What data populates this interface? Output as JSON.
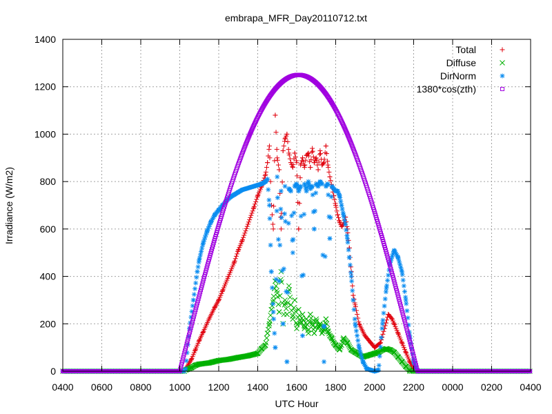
{
  "chart_data": {
    "type": "scatter",
    "title": "embrapa_MFR_Day20110712.txt",
    "xlabel": "UTC Hour",
    "ylabel": "Irradiance (W/m2)",
    "ylim": [
      0,
      1400
    ],
    "xlim": [
      4,
      28
    ],
    "x_ticks": [
      "0400",
      "0600",
      "0800",
      "1000",
      "1200",
      "1400",
      "1600",
      "1800",
      "2000",
      "2200",
      "0000",
      "0200",
      "0400"
    ],
    "y_ticks": [
      "0",
      "200",
      "400",
      "600",
      "800",
      "1000",
      "1200",
      "1400"
    ],
    "grid": true,
    "legend_position": "top-right",
    "series": [
      {
        "name": "Total",
        "marker": "plus",
        "color": "#e0000c",
        "points": [
          [
            10.3,
            10
          ],
          [
            10.6,
            50
          ],
          [
            10.8,
            90
          ],
          [
            11.0,
            130
          ],
          [
            11.2,
            165
          ],
          [
            11.5,
            220
          ],
          [
            11.8,
            270
          ],
          [
            12.0,
            300
          ],
          [
            12.2,
            340
          ],
          [
            12.5,
            400
          ],
          [
            12.8,
            460
          ],
          [
            13.0,
            510
          ],
          [
            13.2,
            550
          ],
          [
            13.5,
            620
          ],
          [
            13.8,
            690
          ],
          [
            14.0,
            740
          ],
          [
            14.2,
            780
          ],
          [
            14.4,
            830
          ],
          [
            14.5,
            880
          ],
          [
            14.6,
            950
          ],
          [
            14.7,
            700
          ],
          [
            14.8,
            600
          ],
          [
            14.9,
            1080
          ],
          [
            15.0,
            900
          ],
          [
            15.1,
            850
          ],
          [
            15.2,
            600
          ],
          [
            15.3,
            930
          ],
          [
            15.4,
            980
          ],
          [
            15.5,
            1000
          ],
          [
            15.6,
            920
          ],
          [
            15.7,
            880
          ],
          [
            15.8,
            860
          ],
          [
            15.9,
            920
          ],
          [
            16.0,
            880
          ],
          [
            16.1,
            600
          ],
          [
            16.2,
            870
          ],
          [
            16.3,
            900
          ],
          [
            16.4,
            860
          ],
          [
            16.5,
            910
          ],
          [
            16.6,
            920
          ],
          [
            16.7,
            860
          ],
          [
            16.8,
            940
          ],
          [
            16.9,
            880
          ],
          [
            17.0,
            900
          ],
          [
            17.1,
            850
          ],
          [
            17.2,
            930
          ],
          [
            17.3,
            870
          ],
          [
            17.4,
            880
          ],
          [
            17.5,
            950
          ],
          [
            17.6,
            870
          ],
          [
            17.7,
            820
          ],
          [
            17.8,
            780
          ],
          [
            17.9,
            740
          ],
          [
            18.0,
            700
          ],
          [
            18.1,
            660
          ],
          [
            18.2,
            630
          ],
          [
            18.3,
            610
          ],
          [
            18.4,
            620
          ],
          [
            18.5,
            650
          ],
          [
            18.6,
            600
          ],
          [
            18.7,
            520
          ],
          [
            18.8,
            420
          ],
          [
            18.9,
            320
          ],
          [
            19.0,
            280
          ],
          [
            19.2,
            200
          ],
          [
            19.5,
            150
          ],
          [
            19.8,
            120
          ],
          [
            20.0,
            100
          ],
          [
            20.3,
            120
          ],
          [
            20.5,
            180
          ],
          [
            20.7,
            240
          ],
          [
            20.9,
            220
          ],
          [
            21.0,
            200
          ],
          [
            21.2,
            160
          ],
          [
            21.4,
            120
          ],
          [
            21.6,
            80
          ],
          [
            21.8,
            40
          ],
          [
            22.0,
            10
          ],
          [
            22.2,
            0
          ]
        ]
      },
      {
        "name": "Diffuse",
        "marker": "cross",
        "color": "#00b000",
        "points": [
          [
            10.3,
            5
          ],
          [
            10.6,
            15
          ],
          [
            10.8,
            25
          ],
          [
            11.0,
            30
          ],
          [
            11.5,
            35
          ],
          [
            12.0,
            45
          ],
          [
            12.5,
            50
          ],
          [
            13.0,
            58
          ],
          [
            13.5,
            65
          ],
          [
            14.0,
            75
          ],
          [
            14.2,
            95
          ],
          [
            14.4,
            110
          ],
          [
            14.5,
            160
          ],
          [
            14.6,
            200
          ],
          [
            14.7,
            260
          ],
          [
            14.8,
            300
          ],
          [
            14.9,
            380
          ],
          [
            15.0,
            330
          ],
          [
            15.1,
            250
          ],
          [
            15.2,
            420
          ],
          [
            15.3,
            200
          ],
          [
            15.4,
            300
          ],
          [
            15.5,
            240
          ],
          [
            15.6,
            360
          ],
          [
            15.7,
            280
          ],
          [
            15.8,
            220
          ],
          [
            15.9,
            300
          ],
          [
            16.0,
            180
          ],
          [
            16.1,
            260
          ],
          [
            16.2,
            200
          ],
          [
            16.3,
            240
          ],
          [
            16.4,
            180
          ],
          [
            16.5,
            220
          ],
          [
            16.6,
            160
          ],
          [
            16.7,
            240
          ],
          [
            16.8,
            200
          ],
          [
            16.9,
            160
          ],
          [
            17.0,
            220
          ],
          [
            17.1,
            180
          ],
          [
            17.2,
            200
          ],
          [
            17.3,
            160
          ],
          [
            17.4,
            180
          ],
          [
            17.5,
            220
          ],
          [
            17.6,
            170
          ],
          [
            17.7,
            150
          ],
          [
            17.8,
            140
          ],
          [
            17.9,
            120
          ],
          [
            18.0,
            110
          ],
          [
            18.1,
            100
          ],
          [
            18.2,
            90
          ],
          [
            18.3,
            110
          ],
          [
            18.4,
            140
          ],
          [
            18.6,
            120
          ],
          [
            18.8,
            90
          ],
          [
            19.0,
            80
          ],
          [
            19.2,
            70
          ],
          [
            19.4,
            60
          ],
          [
            19.6,
            65
          ],
          [
            19.8,
            70
          ],
          [
            20.0,
            75
          ],
          [
            20.2,
            80
          ],
          [
            20.4,
            90
          ],
          [
            20.6,
            95
          ],
          [
            20.8,
            90
          ],
          [
            21.0,
            80
          ],
          [
            21.2,
            60
          ],
          [
            21.4,
            40
          ],
          [
            21.6,
            20
          ],
          [
            21.8,
            5
          ]
        ]
      },
      {
        "name": "DirNorm",
        "marker": "star",
        "color": "#0a8cf0",
        "points": [
          [
            10.3,
            10
          ],
          [
            10.5,
            180
          ],
          [
            10.7,
            300
          ],
          [
            10.9,
            420
          ],
          [
            11.0,
            470
          ],
          [
            11.2,
            540
          ],
          [
            11.4,
            590
          ],
          [
            11.6,
            630
          ],
          [
            11.8,
            660
          ],
          [
            12.0,
            680
          ],
          [
            12.2,
            700
          ],
          [
            12.4,
            720
          ],
          [
            12.6,
            735
          ],
          [
            12.8,
            745
          ],
          [
            13.0,
            755
          ],
          [
            13.2,
            765
          ],
          [
            13.4,
            770
          ],
          [
            13.6,
            775
          ],
          [
            13.8,
            780
          ],
          [
            14.0,
            785
          ],
          [
            14.2,
            790
          ],
          [
            14.3,
            795
          ],
          [
            14.4,
            800
          ],
          [
            14.5,
            810
          ],
          [
            14.6,
            700
          ],
          [
            14.7,
            420
          ],
          [
            14.8,
            250
          ],
          [
            14.9,
            100
          ],
          [
            15.0,
            820
          ],
          [
            15.1,
            380
          ],
          [
            15.2,
            760
          ],
          [
            15.3,
            200
          ],
          [
            15.4,
            780
          ],
          [
            15.5,
            40
          ],
          [
            15.6,
            770
          ],
          [
            15.7,
            760
          ],
          [
            15.8,
            500
          ],
          [
            15.9,
            780
          ],
          [
            16.0,
            790
          ],
          [
            16.1,
            760
          ],
          [
            16.2,
            780
          ],
          [
            16.3,
            150
          ],
          [
            16.4,
            790
          ],
          [
            16.5,
            760
          ],
          [
            16.6,
            800
          ],
          [
            16.7,
            770
          ],
          [
            16.8,
            780
          ],
          [
            16.9,
            600
          ],
          [
            17.0,
            790
          ],
          [
            17.1,
            780
          ],
          [
            17.2,
            800
          ],
          [
            17.3,
            790
          ],
          [
            17.4,
            40
          ],
          [
            17.5,
            780
          ],
          [
            17.6,
            790
          ],
          [
            17.7,
            560
          ],
          [
            17.8,
            780
          ],
          [
            17.9,
            770
          ],
          [
            18.0,
            760
          ],
          [
            18.1,
            760
          ],
          [
            18.2,
            740
          ],
          [
            18.3,
            700
          ],
          [
            18.4,
            660
          ],
          [
            18.5,
            620
          ],
          [
            18.6,
            560
          ],
          [
            18.7,
            480
          ],
          [
            18.8,
            400
          ],
          [
            18.9,
            300
          ],
          [
            19.0,
            200
          ],
          [
            19.2,
            100
          ],
          [
            19.4,
            40
          ],
          [
            19.6,
            10
          ],
          [
            19.8,
            5
          ],
          [
            20.0,
            0
          ],
          [
            20.2,
            5
          ],
          [
            20.4,
            200
          ],
          [
            20.6,
            350
          ],
          [
            20.8,
            460
          ],
          [
            21.0,
            510
          ],
          [
            21.2,
            480
          ],
          [
            21.4,
            420
          ],
          [
            21.6,
            300
          ],
          [
            21.8,
            150
          ],
          [
            22.0,
            40
          ],
          [
            22.2,
            0
          ]
        ]
      },
      {
        "name": "1380*cos(zth)",
        "marker": "square",
        "color": "#a000e0",
        "peak_x": 16.1,
        "peak_y": 1250,
        "sunrise_x": 10.0,
        "sunset_x": 22.2
      }
    ]
  }
}
